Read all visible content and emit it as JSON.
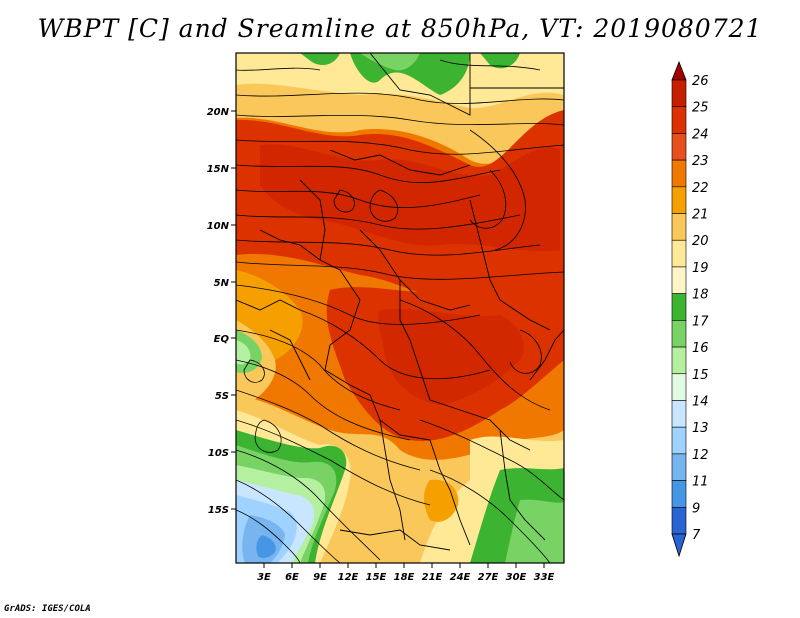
{
  "title": "WBPT [C] and Sreamline at 850hPa, VT: 2019080721",
  "footer": "GrADS: IGES/COLA",
  "map": {
    "variable": "Wet-bulb potential temperature",
    "units": "C",
    "level": "850hPa",
    "valid_time": "2019080721",
    "lon_ticks": [
      "3E",
      "6E",
      "9E",
      "12E",
      "15E",
      "18E",
      "21E",
      "24E",
      "27E",
      "30E",
      "33E"
    ],
    "lat_ticks": [
      "20N",
      "15N",
      "10N",
      "5N",
      "EQ",
      "5S",
      "10S",
      "15S"
    ]
  },
  "colorbar": {
    "levels": [
      "26",
      "25",
      "24",
      "23",
      "22",
      "21",
      "20",
      "19",
      "18",
      "17",
      "16",
      "15",
      "14",
      "13",
      "12",
      "11",
      "9",
      "7"
    ],
    "colors": [
      "#a50000",
      "#c81e00",
      "#dc3200",
      "#e6501e",
      "#f07800",
      "#f5a000",
      "#fac85a",
      "#ffe896",
      "#fff5c8",
      "#3cb432",
      "#78d264",
      "#b4f0a0",
      "#e1fae1",
      "#c8e6ff",
      "#a0d2ff",
      "#78b4f0",
      "#4696e6",
      "#2864d2"
    ]
  }
}
